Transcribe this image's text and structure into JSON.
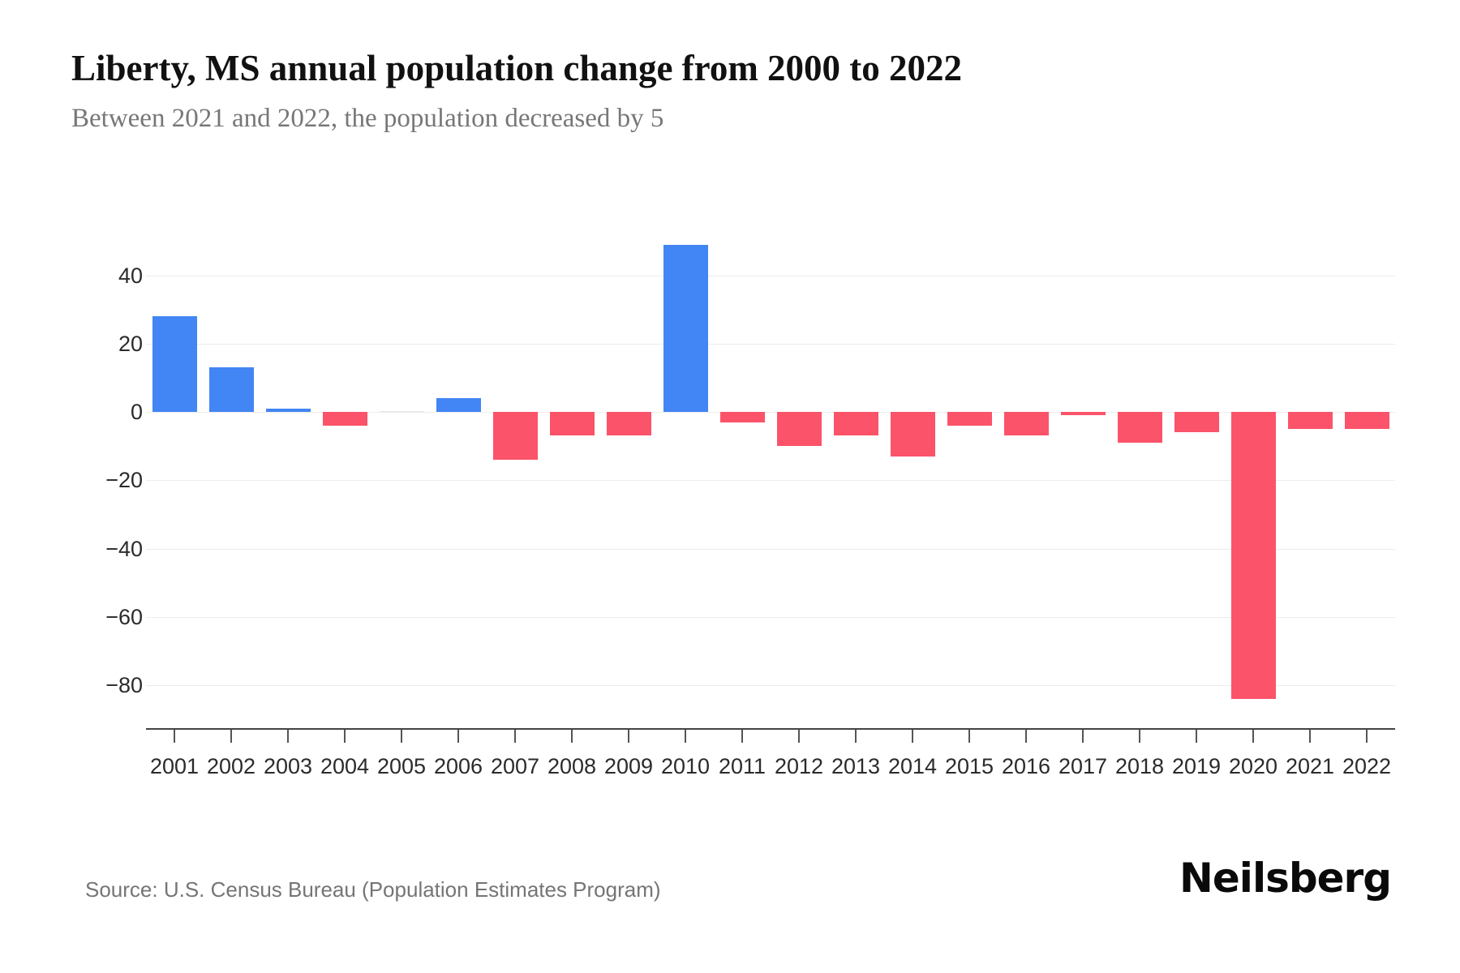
{
  "header": {
    "title": "Liberty, MS annual population change from 2000 to 2022",
    "subtitle": "Between 2021 and 2022, the population decreased by 5"
  },
  "footer": {
    "source": "Source: U.S. Census Bureau (Population Estimates Program)",
    "brand": "Neilsberg"
  },
  "chart_data": {
    "type": "bar",
    "title": "Liberty, MS annual population change from 2000 to 2022",
    "subtitle": "Between 2021 and 2022, the population decreased by 5",
    "categories": [
      "2001",
      "2002",
      "2003",
      "2004",
      "2005",
      "2006",
      "2007",
      "2008",
      "2009",
      "2010",
      "2011",
      "2012",
      "2013",
      "2014",
      "2015",
      "2016",
      "2017",
      "2018",
      "2019",
      "2020",
      "2021",
      "2022"
    ],
    "values": [
      28,
      13,
      1,
      -4,
      0,
      4,
      -14,
      -7,
      -7,
      49,
      -3,
      -10,
      -7,
      -13,
      -4,
      -7,
      -1,
      -9,
      -6,
      -84,
      -5,
      -5
    ],
    "xlabel": "",
    "ylabel": "",
    "ylim": [
      -92,
      61
    ],
    "yticks": [
      40,
      20,
      0,
      -20,
      -40,
      -60,
      -80
    ],
    "grid": true,
    "legend": false,
    "colors": {
      "positive": "#4285F4",
      "negative": "#FB536A",
      "zero_bar": "#e9e9e9",
      "gridline": "#ececec",
      "axis": "#444444",
      "tick_text": "#2b2b2b"
    }
  }
}
